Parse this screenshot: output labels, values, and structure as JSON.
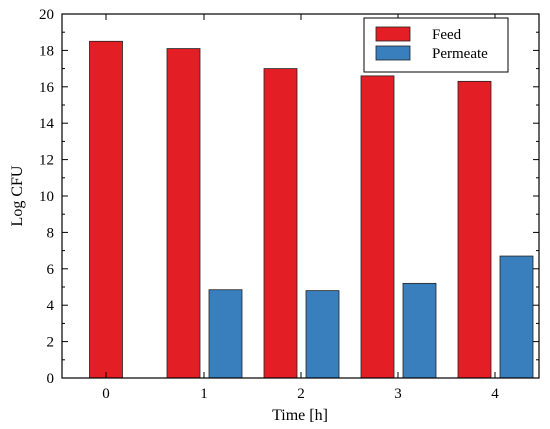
{
  "chart_data": {
    "type": "bar",
    "title": "",
    "xlabel": "Time [h]",
    "ylabel": "Log CFU",
    "categories": [
      "0",
      "1",
      "2",
      "3",
      "4"
    ],
    "series": [
      {
        "name": "Feed",
        "color": "#e31e24",
        "values": [
          18.5,
          18.1,
          17.0,
          16.6,
          16.3
        ]
      },
      {
        "name": "Permeate",
        "color": "#3a7fbd",
        "values": [
          null,
          4.85,
          4.8,
          5.2,
          6.7
        ]
      }
    ],
    "ylim": [
      0,
      20
    ],
    "yticks": [
      "0",
      "2",
      "4",
      "6",
      "8",
      "10",
      "12",
      "14",
      "16",
      "18",
      "20"
    ],
    "grid": false,
    "legend_position": "top-right"
  }
}
